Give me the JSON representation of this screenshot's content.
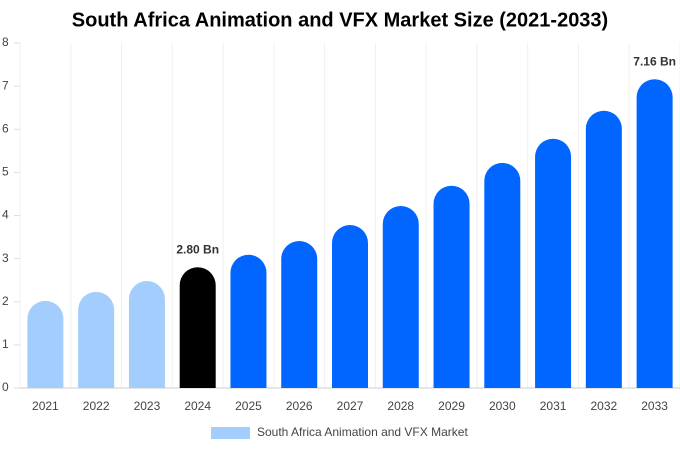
{
  "chart_data": {
    "type": "bar",
    "title": "South Africa Animation and VFX Market Size (2021-2033)",
    "categories": [
      "2021",
      "2022",
      "2023",
      "2024",
      "2025",
      "2026",
      "2027",
      "2028",
      "2029",
      "2030",
      "2031",
      "2032",
      "2033"
    ],
    "series": [
      {
        "name": "South Africa Animation and VFX Market",
        "color": "#a3cdfc",
        "values": [
          2.02,
          2.23,
          2.48,
          2.8,
          3.09,
          3.41,
          3.78,
          4.22,
          4.69,
          5.22,
          5.78,
          6.43,
          7.16
        ],
        "value_labels": [
          null,
          null,
          null,
          "2.80 Bn",
          null,
          null,
          null,
          null,
          null,
          null,
          null,
          null,
          "7.16 Bn"
        ],
        "colors": [
          "#a3cdfc",
          "#a3cdfc",
          "#a3cdfc",
          "#000000",
          "#0066ff",
          "#0066ff",
          "#0066ff",
          "#0066ff",
          "#0066ff",
          "#0066ff",
          "#0066ff",
          "#0066ff",
          "#0066ff"
        ]
      }
    ],
    "ylim": [
      0,
      8
    ],
    "yticks": [
      0,
      1,
      2,
      3,
      4,
      5,
      6,
      7,
      8
    ],
    "grid": true
  }
}
